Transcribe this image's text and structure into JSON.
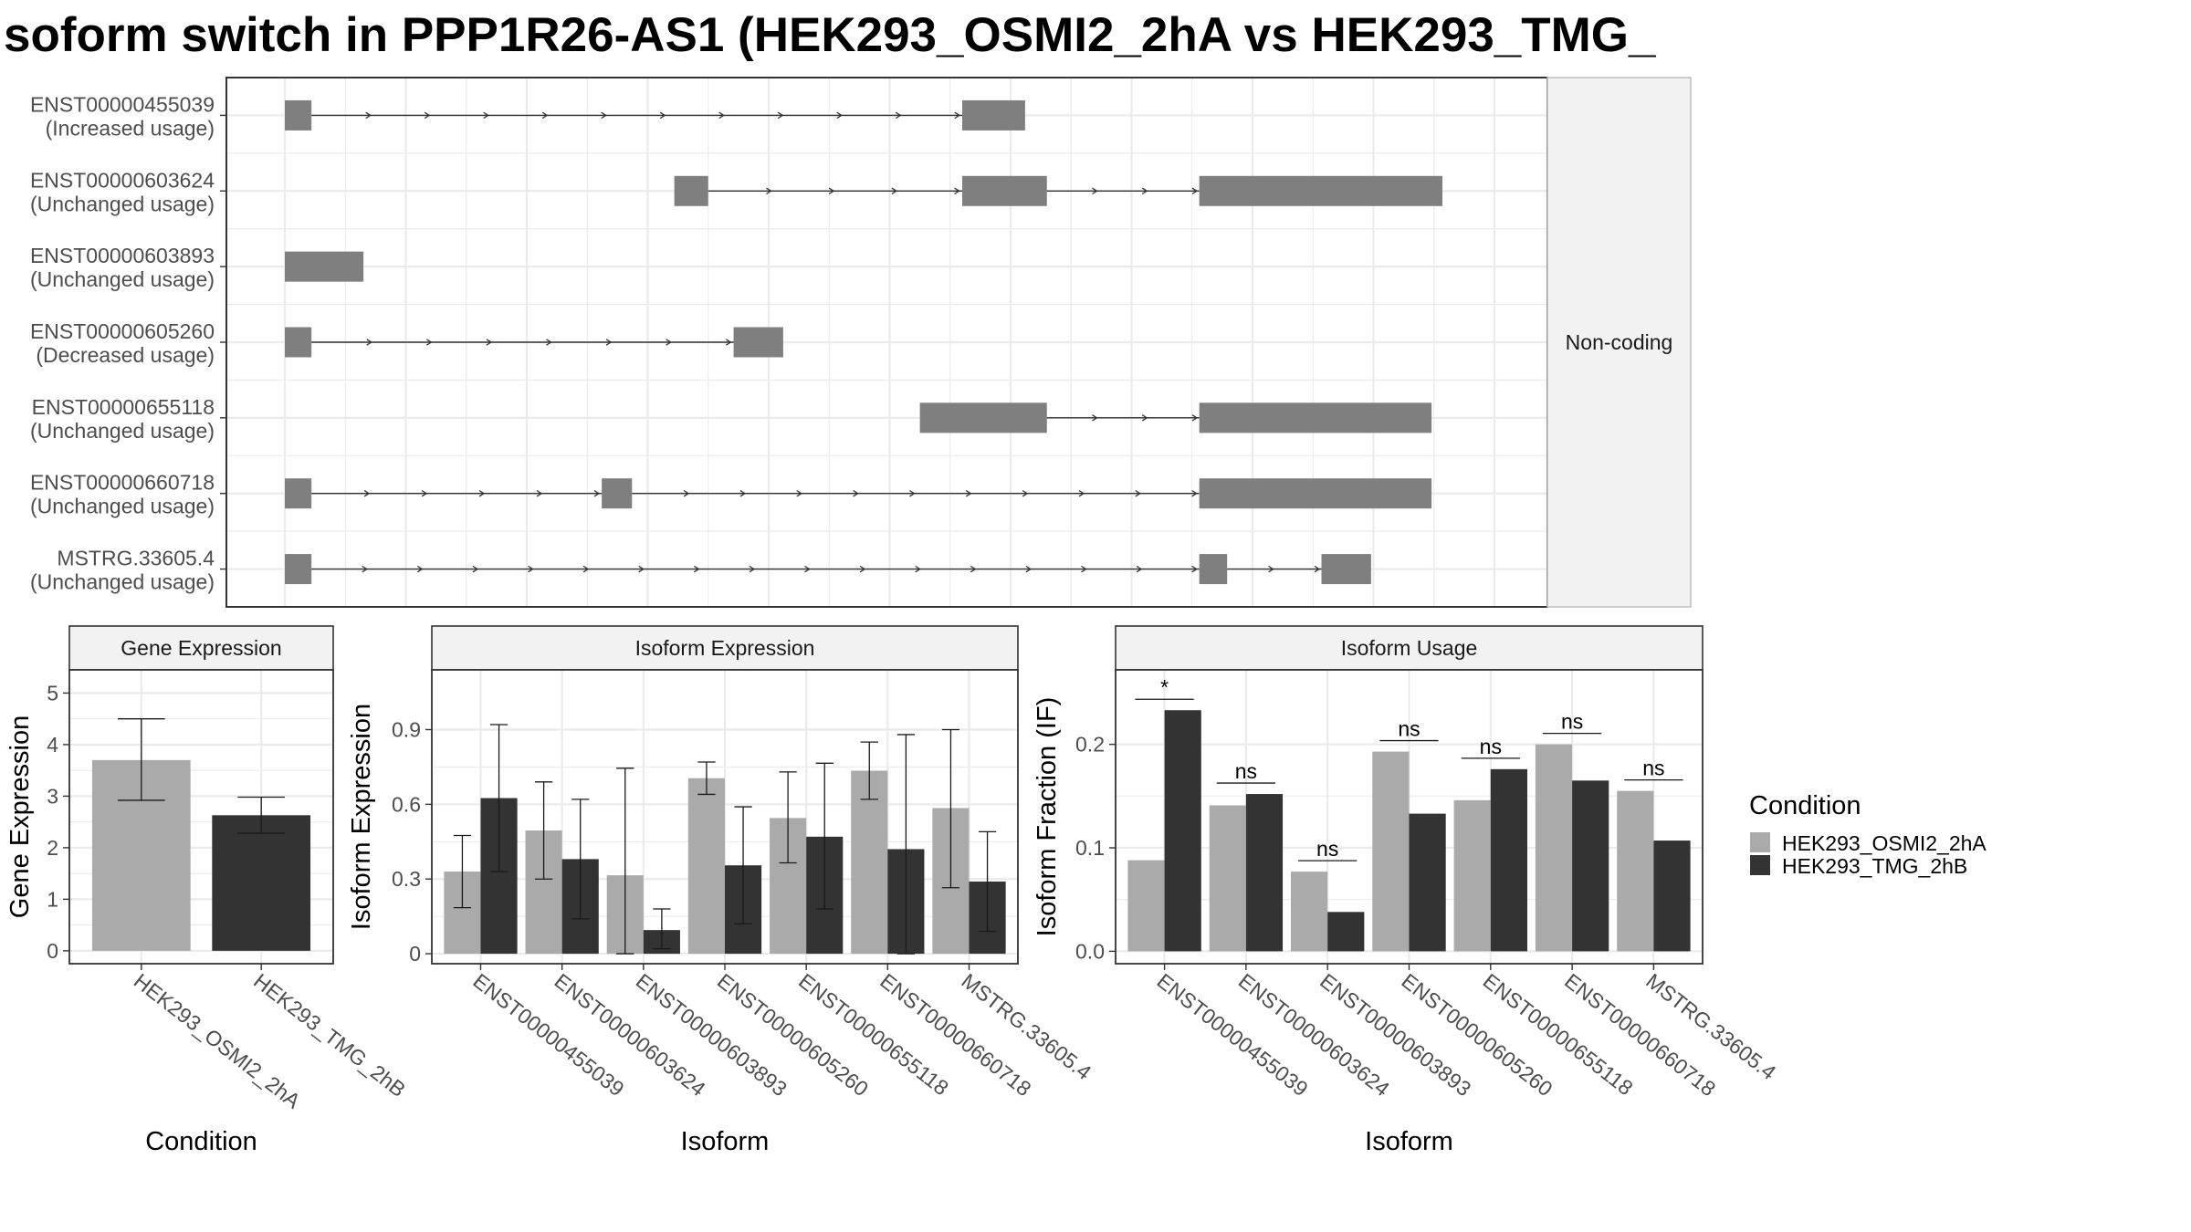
{
  "title": "soform switch in PPP1R26-AS1 (HEK293_OSMI2_2hA vs HEK293_TMG_",
  "colors": {
    "cond_a": "#aaaaaa",
    "cond_b": "#333333",
    "exon": "#7f7f7f",
    "grid": "#ebebeb",
    "strip_bg": "#f2f2f2",
    "panel_border": "#333333"
  },
  "chart_data": [
    {
      "type": "transcript-structure",
      "strip_label": "Non-coding",
      "coordinate_range": [
        0,
        1000
      ],
      "transcripts": [
        {
          "id": "ENST00000455039",
          "usage": "(Increased usage)",
          "exons": [
            [
              0,
              22
            ],
            [
              560,
              612
            ]
          ]
        },
        {
          "id": "ENST00000603624",
          "usage": "(Unchanged usage)",
          "exons": [
            [
              322,
              350
            ],
            [
              560,
              630
            ],
            [
              756,
              957
            ]
          ]
        },
        {
          "id": "ENST00000603893",
          "usage": "(Unchanged usage)",
          "exons": [
            [
              0,
              65
            ]
          ]
        },
        {
          "id": "ENST00000605260",
          "usage": "(Decreased usage)",
          "exons": [
            [
              0,
              22
            ],
            [
              371,
              412
            ]
          ]
        },
        {
          "id": "ENST00000655118",
          "usage": "(Unchanged usage)",
          "exons": [
            [
              525,
              630
            ],
            [
              756,
              948
            ]
          ]
        },
        {
          "id": "ENST00000660718",
          "usage": "(Unchanged usage)",
          "exons": [
            [
              0,
              22
            ],
            [
              262,
              287
            ],
            [
              756,
              948
            ]
          ]
        },
        {
          "id": "MSTRG.33605.4",
          "usage": "(Unchanged usage)",
          "exons": [
            [
              0,
              22
            ],
            [
              756,
              779
            ],
            [
              857,
              898
            ]
          ]
        }
      ]
    },
    {
      "type": "bar",
      "title": "Gene Expression",
      "xlabel": "Condition",
      "ylabel": "Gene Expression",
      "categories": [
        "HEK293_OSMI2_2hA",
        "HEK293_TMG_2hB"
      ],
      "values": [
        3.7,
        2.63
      ],
      "error_low": [
        2.92,
        2.28
      ],
      "error_high": [
        4.5,
        2.98
      ],
      "ylim": [
        -0.25,
        5.45
      ],
      "yticks": [
        0,
        1,
        2,
        3,
        4,
        5
      ]
    },
    {
      "type": "bar",
      "title": "Isoform Expression",
      "xlabel": "Isoform",
      "ylabel": "Isoform Expression",
      "categories": [
        "ENST00000455039",
        "ENST00000603624",
        "ENST00000603893",
        "ENST00000605260",
        "ENST00000655118",
        "ENST00000660718",
        "MSTRG.33605.4"
      ],
      "series": [
        {
          "name": "HEK293_OSMI2_2hA",
          "values": [
            0.33,
            0.495,
            0.315,
            0.705,
            0.545,
            0.735,
            0.585
          ],
          "error_low": [
            0.185,
            0.3,
            0.0,
            0.64,
            0.365,
            0.62,
            0.265
          ],
          "error_high": [
            0.475,
            0.69,
            0.745,
            0.77,
            0.73,
            0.85,
            0.9
          ]
        },
        {
          "name": "HEK293_TMG_2hB",
          "values": [
            0.625,
            0.38,
            0.095,
            0.355,
            0.47,
            0.42,
            0.29
          ],
          "error_low": [
            0.33,
            0.14,
            0.02,
            0.12,
            0.18,
            0.0,
            0.09
          ],
          "error_high": [
            0.92,
            0.62,
            0.18,
            0.59,
            0.765,
            0.88,
            0.49
          ]
        }
      ],
      "ylim": [
        -0.04,
        1.14
      ],
      "yticks": [
        0.0,
        0.3,
        0.6,
        0.9
      ]
    },
    {
      "type": "bar",
      "title": "Isoform Usage",
      "xlabel": "Isoform",
      "ylabel": "Isoform Fraction (IF)",
      "categories": [
        "ENST00000455039",
        "ENST00000603624",
        "ENST00000603893",
        "ENST00000605260",
        "ENST00000655118",
        "ENST00000660718",
        "MSTRG.33605.4"
      ],
      "series": [
        {
          "name": "HEK293_OSMI2_2hA",
          "values": [
            0.088,
            0.141,
            0.077,
            0.193,
            0.146,
            0.2,
            0.155
          ]
        },
        {
          "name": "HEK293_TMG_2hB",
          "values": [
            0.233,
            0.152,
            0.038,
            0.133,
            0.176,
            0.165,
            0.107
          ]
        }
      ],
      "significance": [
        "*",
        "ns",
        "ns",
        "ns",
        "ns",
        "ns",
        "ns"
      ],
      "ylim": [
        -0.012,
        0.272
      ],
      "yticks": [
        0.0,
        0.1,
        0.2
      ],
      "ytick_labels": [
        "0.0",
        "0.1",
        "0.2"
      ]
    }
  ],
  "legend": {
    "title": "Condition",
    "items": [
      "HEK293_OSMI2_2hA",
      "HEK293_TMG_2hB"
    ],
    "position": "right"
  }
}
